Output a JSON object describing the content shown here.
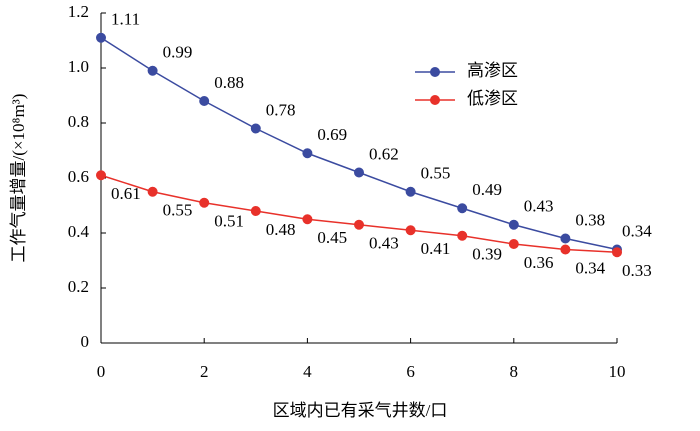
{
  "chart_data": {
    "type": "line",
    "xlabel": "区域内已有采气井数/口",
    "ylabel": "工作气量增量/(×10⁸m³)",
    "x": [
      0,
      1,
      2,
      3,
      4,
      5,
      6,
      7,
      8,
      9,
      10
    ],
    "series": [
      {
        "name": "高渗区",
        "color": "#3b4ba0",
        "values": [
          1.11,
          0.99,
          0.88,
          0.78,
          0.69,
          0.62,
          0.55,
          0.49,
          0.43,
          0.38,
          0.34
        ]
      },
      {
        "name": "低渗区",
        "color": "#e8312a",
        "values": [
          0.61,
          0.55,
          0.51,
          0.48,
          0.45,
          0.43,
          0.41,
          0.39,
          0.36,
          0.34,
          0.33
        ]
      }
    ],
    "xlim": [
      0,
      10
    ],
    "xticks": [
      0,
      2,
      4,
      6,
      8,
      10
    ],
    "ylim": [
      0,
      1.2
    ],
    "yticks": [
      0,
      0.2,
      0.4,
      0.6,
      0.8,
      {
        "value": 1,
        "label": "1.0"
      },
      1.2
    ],
    "legend": "upper right",
    "grid": false
  }
}
